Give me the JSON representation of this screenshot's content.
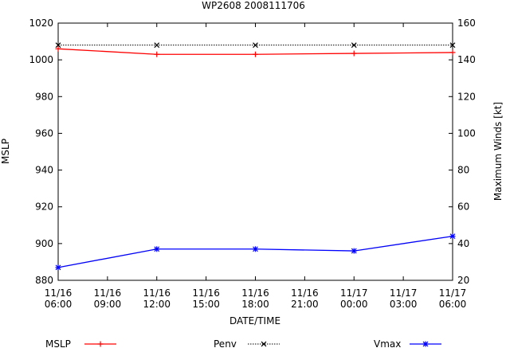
{
  "chart_data": {
    "type": "line",
    "title": "WP2608 2008111706",
    "xlabel": "DATE/TIME",
    "ylabel": "MSLP",
    "y2label": "Maximum Winds [kt]",
    "x_ticks": [
      {
        "line1": "11/16",
        "line2": "06:00",
        "h": 0
      },
      {
        "line1": "11/16",
        "line2": "09:00",
        "h": 3
      },
      {
        "line1": "11/16",
        "line2": "12:00",
        "h": 6
      },
      {
        "line1": "11/16",
        "line2": "15:00",
        "h": 9
      },
      {
        "line1": "11/16",
        "line2": "18:00",
        "h": 12
      },
      {
        "line1": "11/16",
        "line2": "21:00",
        "h": 15
      },
      {
        "line1": "11/17",
        "line2": "00:00",
        "h": 18
      },
      {
        "line1": "11/17",
        "line2": "03:00",
        "h": 21
      },
      {
        "line1": "11/17",
        "line2": "06:00",
        "h": 24
      }
    ],
    "xlim": [
      0,
      24
    ],
    "ylim": [
      880,
      1020
    ],
    "y_ticks": [
      880,
      900,
      920,
      940,
      960,
      980,
      1000,
      1020
    ],
    "y2lim": [
      20,
      160
    ],
    "y2_ticks": [
      20,
      40,
      60,
      80,
      100,
      120,
      140,
      160
    ],
    "series": [
      {
        "name": "MSLP",
        "axis": "left",
        "color": "#ff0000",
        "marker": "plus",
        "style": "solid",
        "x": [
          0,
          6,
          12,
          18,
          24
        ],
        "values": [
          1006,
          1003,
          1003,
          1003.5,
          1004
        ]
      },
      {
        "name": "Penv",
        "axis": "left",
        "color": "#000000",
        "marker": "cross",
        "style": "dotted",
        "x": [
          0,
          6,
          12,
          18,
          24
        ],
        "values": [
          1008,
          1008,
          1008,
          1008,
          1008
        ]
      },
      {
        "name": "Vmax",
        "axis": "right",
        "color": "#0000ff",
        "marker": "star",
        "style": "solid",
        "x": [
          0,
          6,
          12,
          18,
          24
        ],
        "values": [
          27,
          37,
          37,
          36,
          44
        ]
      }
    ]
  }
}
